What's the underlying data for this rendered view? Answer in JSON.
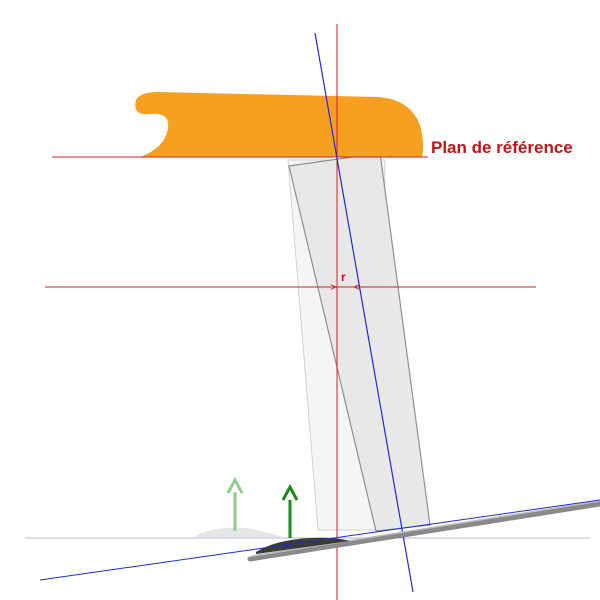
{
  "labels": {
    "reference_plane": "Plan de référence",
    "offset": "r"
  },
  "colors": {
    "body": "#f6a021",
    "construction_line": "#d21f2a",
    "axis_line": "#1f2bd8",
    "strut_fill": "#e9e9e9",
    "strut_stroke": "#8a8a8a",
    "force_arrow": "#1b8a1b",
    "force_arrow_faded": "#8fce8f",
    "ground": "#777777",
    "contact_patch": "#3a3a3a"
  },
  "elements": {
    "body": "body-shape",
    "strut_ghost": "ghost-strut",
    "strut": "tilted-strut",
    "ground_base": "ground-base-line",
    "ground_tilted": "tilted-ground",
    "contact_patch": "contact-patch",
    "force_arrow": "force-arrow-icon",
    "force_arrow_faded": "faded-force-arrow-icon"
  }
}
